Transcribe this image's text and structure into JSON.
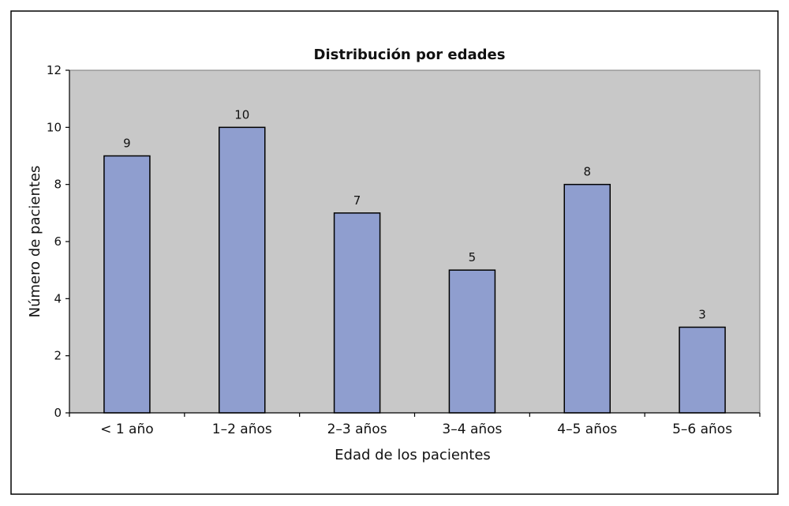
{
  "chart_data": {
    "type": "bar",
    "title": "Distribución por edades",
    "xlabel": "Edad de los pacientes",
    "ylabel": "Número de pacientes",
    "categories": [
      "< 1 año",
      "1–2 años",
      "2–3 años",
      "3–4 años",
      "4–5 años",
      "5–6 años"
    ],
    "values": [
      9,
      10,
      7,
      5,
      8,
      3
    ],
    "ylim": [
      0,
      12
    ],
    "yticks": [
      0,
      2,
      4,
      6,
      8,
      10,
      12
    ],
    "grid": false,
    "legend": "none",
    "colors": {
      "bar_fill": "#8f9ecf",
      "bar_stroke": "#000000",
      "plot_background": "#c8c8c8",
      "frame": "#000000"
    }
  }
}
